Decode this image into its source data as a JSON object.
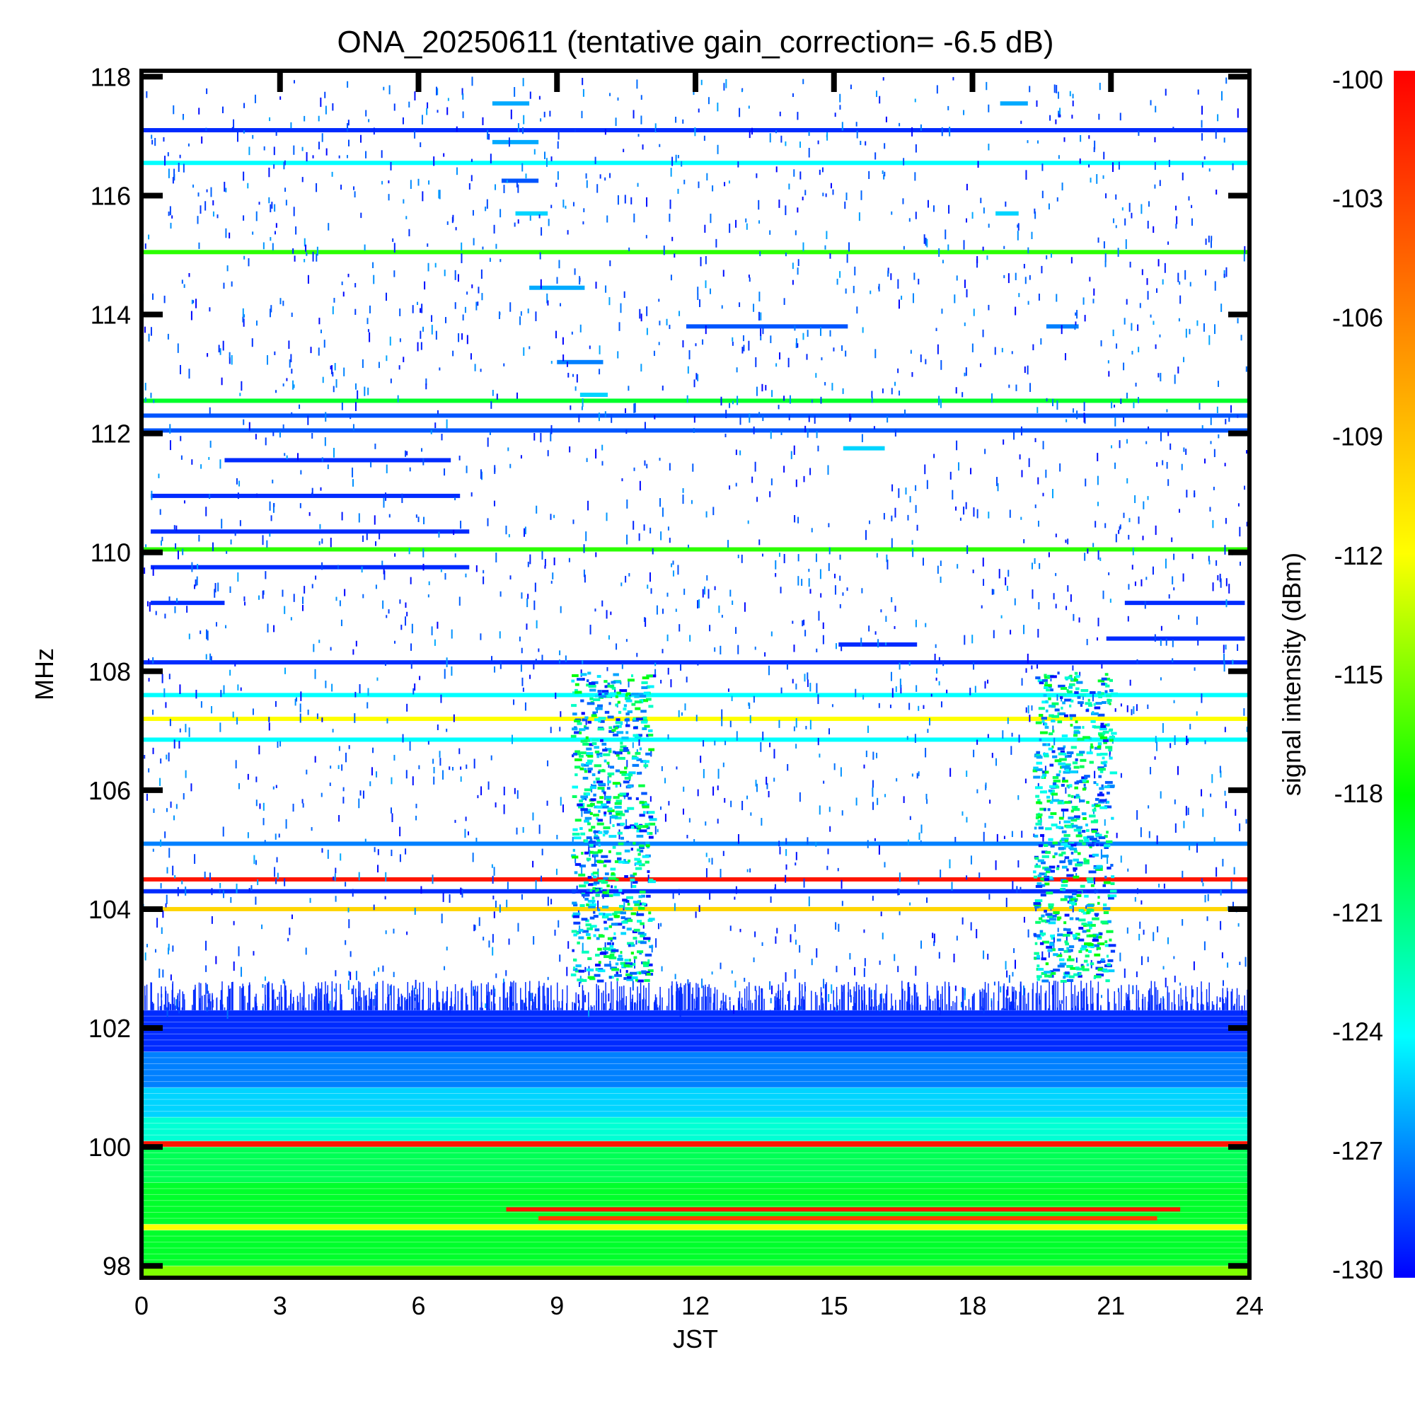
{
  "chart_data": {
    "type": "heatmap",
    "title": "ONA_20250611 (tentative gain_correction= -6.5 dB)",
    "xlabel": "JST",
    "ylabel": "MHz",
    "xlim": [
      0,
      24
    ],
    "ylim": [
      97.8,
      118.1
    ],
    "x_ticks": [
      "0",
      "3",
      "6",
      "9",
      "12",
      "15",
      "18",
      "21",
      "24"
    ],
    "y_ticks": [
      "98",
      "100",
      "102",
      "104",
      "106",
      "108",
      "110",
      "112",
      "114",
      "116",
      "118"
    ],
    "colorbar": {
      "label": "signal intensity (dBm)",
      "range": [
        -130,
        -100
      ],
      "ticks": [
        "-100",
        "-103",
        "-106",
        "-109",
        "-112",
        "-115",
        "-118",
        "-121",
        "-124",
        "-127",
        "-130"
      ],
      "colormap": [
        "#0000ff",
        "#00ffff",
        "#00ff00",
        "#ffff00",
        "#ff8000",
        "#ff0000"
      ]
    },
    "background_bands": [
      {
        "from_mhz": 97.8,
        "to_mhz": 98.0,
        "level_dbm": -115
      },
      {
        "from_mhz": 98.0,
        "to_mhz": 98.6,
        "level_dbm": -119
      },
      {
        "from_mhz": 98.6,
        "to_mhz": 98.7,
        "level_dbm": -112
      },
      {
        "from_mhz": 98.7,
        "to_mhz": 99.4,
        "level_dbm": -119
      },
      {
        "from_mhz": 99.4,
        "to_mhz": 100.0,
        "level_dbm": -120
      },
      {
        "from_mhz": 100.0,
        "to_mhz": 100.1,
        "level_dbm": -101
      },
      {
        "from_mhz": 100.1,
        "to_mhz": 100.5,
        "level_dbm": -123
      },
      {
        "from_mhz": 100.5,
        "to_mhz": 101.0,
        "level_dbm": -125
      },
      {
        "from_mhz": 101.0,
        "to_mhz": 101.6,
        "level_dbm": -127
      },
      {
        "from_mhz": 101.6,
        "to_mhz": 102.3,
        "level_dbm": -129
      }
    ],
    "signals": [
      {
        "freq_mhz": 117.1,
        "start_h": 0,
        "end_h": 24,
        "level_dbm": -129
      },
      {
        "freq_mhz": 116.55,
        "start_h": 0,
        "end_h": 24,
        "level_dbm": -124
      },
      {
        "freq_mhz": 115.05,
        "start_h": 0,
        "end_h": 24,
        "level_dbm": -117
      },
      {
        "freq_mhz": 112.55,
        "start_h": 0,
        "end_h": 24,
        "level_dbm": -119
      },
      {
        "freq_mhz": 112.3,
        "start_h": 0,
        "end_h": 24,
        "level_dbm": -128
      },
      {
        "freq_mhz": 112.05,
        "start_h": 0,
        "end_h": 24,
        "level_dbm": -128
      },
      {
        "freq_mhz": 110.05,
        "start_h": 0,
        "end_h": 24,
        "level_dbm": -117
      },
      {
        "freq_mhz": 108.15,
        "start_h": 0,
        "end_h": 24,
        "level_dbm": -129
      },
      {
        "freq_mhz": 107.6,
        "start_h": 0,
        "end_h": 24,
        "level_dbm": -124
      },
      {
        "freq_mhz": 107.2,
        "start_h": 0,
        "end_h": 24,
        "level_dbm": -112
      },
      {
        "freq_mhz": 106.85,
        "start_h": 0,
        "end_h": 24,
        "level_dbm": -124
      },
      {
        "freq_mhz": 105.1,
        "start_h": 0,
        "end_h": 24,
        "level_dbm": -127
      },
      {
        "freq_mhz": 104.3,
        "start_h": 0,
        "end_h": 24,
        "level_dbm": -129
      },
      {
        "freq_mhz": 111.55,
        "start_h": 1.8,
        "end_h": 6.7,
        "level_dbm": -129
      },
      {
        "freq_mhz": 110.95,
        "start_h": 0.2,
        "end_h": 6.9,
        "level_dbm": -129
      },
      {
        "freq_mhz": 110.35,
        "start_h": 0.2,
        "end_h": 7.1,
        "level_dbm": -129
      },
      {
        "freq_mhz": 109.75,
        "start_h": 0.2,
        "end_h": 7.1,
        "level_dbm": -129
      },
      {
        "freq_mhz": 109.15,
        "start_h": 0.2,
        "end_h": 1.8,
        "level_dbm": -129
      },
      {
        "freq_mhz": 109.15,
        "start_h": 21.3,
        "end_h": 23.9,
        "level_dbm": -129
      },
      {
        "freq_mhz": 108.55,
        "start_h": 20.9,
        "end_h": 23.9,
        "level_dbm": -129
      },
      {
        "freq_mhz": 108.45,
        "start_h": 15.1,
        "end_h": 16.8,
        "level_dbm": -129
      },
      {
        "freq_mhz": 113.8,
        "start_h": 11.8,
        "end_h": 15.3,
        "level_dbm": -128
      },
      {
        "freq_mhz": 113.8,
        "start_h": 19.6,
        "end_h": 20.3,
        "level_dbm": -127
      },
      {
        "freq_mhz": 116.25,
        "start_h": 7.8,
        "end_h": 8.6,
        "level_dbm": -128
      },
      {
        "freq_mhz": 115.7,
        "start_h": 8.1,
        "end_h": 8.8,
        "level_dbm": -125
      },
      {
        "freq_mhz": 114.45,
        "start_h": 8.4,
        "end_h": 9.6,
        "level_dbm": -126
      },
      {
        "freq_mhz": 113.2,
        "start_h": 9.0,
        "end_h": 10.0,
        "level_dbm": -127
      },
      {
        "freq_mhz": 112.65,
        "start_h": 9.5,
        "end_h": 10.1,
        "level_dbm": -125
      },
      {
        "freq_mhz": 111.75,
        "start_h": 15.2,
        "end_h": 16.1,
        "level_dbm": -125
      },
      {
        "freq_mhz": 117.55,
        "start_h": 7.6,
        "end_h": 8.4,
        "level_dbm": -126
      },
      {
        "freq_mhz": 116.9,
        "start_h": 7.6,
        "end_h": 8.6,
        "level_dbm": -126
      },
      {
        "freq_mhz": 117.55,
        "start_h": 18.6,
        "end_h": 19.2,
        "level_dbm": -126
      },
      {
        "freq_mhz": 115.7,
        "start_h": 18.5,
        "end_h": 19.0,
        "level_dbm": -125
      },
      {
        "freq_mhz": 104.5,
        "start_h": 0,
        "end_h": 24,
        "level_dbm": -101
      },
      {
        "freq_mhz": 104.0,
        "start_h": 0,
        "end_h": 24,
        "level_dbm": -110
      },
      {
        "freq_mhz": 98.95,
        "start_h": 7.9,
        "end_h": 22.5,
        "level_dbm": -101
      },
      {
        "freq_mhz": 98.8,
        "start_h": 8.6,
        "end_h": 22.0,
        "level_dbm": -103
      }
    ],
    "grid": false,
    "colorbar_position": "right"
  }
}
